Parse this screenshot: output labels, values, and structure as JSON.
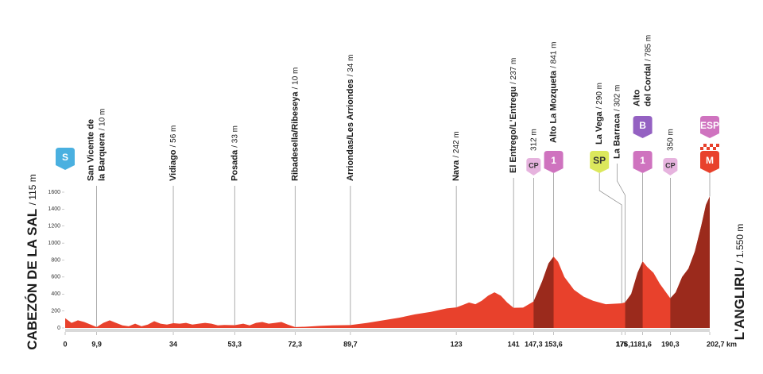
{
  "chart_data": {
    "type": "area",
    "start_name": "CABEZÓN DE LA SAL",
    "start_elevation": "/ 115 m",
    "finish_name": "L'ANGLIRU",
    "finish_elevation": "/ 1.550 m",
    "x": [
      0,
      2,
      4,
      6,
      8,
      9.9,
      12,
      14,
      16,
      18,
      20,
      22,
      24,
      26,
      28,
      30,
      32,
      34,
      36,
      38,
      40,
      42,
      44,
      46,
      48,
      50,
      53.3,
      56,
      58,
      60,
      62,
      64,
      66,
      68,
      70,
      72.3,
      76,
      80,
      84,
      89.7,
      95,
      100,
      105,
      110,
      115,
      120,
      123,
      125,
      127,
      129,
      131,
      133,
      135,
      137,
      139,
      141,
      144,
      147.3,
      150,
      152,
      153.6,
      155,
      157,
      160,
      163,
      166,
      170,
      175,
      176.1,
      178,
      180,
      181.6,
      183,
      185,
      187,
      190.3,
      192,
      194,
      196,
      198,
      200,
      201.5,
      202.7
    ],
    "values": [
      115,
      60,
      90,
      70,
      40,
      10,
      60,
      90,
      60,
      30,
      20,
      50,
      20,
      40,
      80,
      50,
      40,
      56,
      50,
      60,
      40,
      50,
      60,
      50,
      30,
      35,
      33,
      50,
      30,
      60,
      70,
      50,
      60,
      70,
      40,
      10,
      15,
      25,
      30,
      34,
      60,
      90,
      120,
      160,
      190,
      230,
      242,
      270,
      300,
      280,
      320,
      380,
      420,
      380,
      300,
      237,
      240,
      312,
      550,
      760,
      841,
      780,
      600,
      450,
      370,
      320,
      280,
      290,
      302,
      400,
      650,
      785,
      720,
      650,
      520,
      350,
      420,
      600,
      700,
      900,
      1200,
      1450,
      1550
    ],
    "color": "#e8412c",
    "climb_color": "#9b2a1c",
    "climbs": [
      {
        "from": 147.3,
        "to": 153.6
      },
      {
        "from": 176.1,
        "to": 181.6
      },
      {
        "from": 190.3,
        "to": 202.7
      }
    ],
    "xlim": [
      0,
      202.7
    ],
    "ylim": [
      0,
      1600
    ],
    "xticks": [
      0,
      {
        "value": 9.9,
        "label": "9,9"
      },
      34,
      {
        "value": 53.3,
        "label": "53,3"
      },
      {
        "value": 72.3,
        "label": "72,3"
      },
      {
        "value": 89.7,
        "label": "89,7"
      },
      123,
      141,
      {
        "value": 147.3,
        "label": "147,3"
      },
      {
        "value": 153.6,
        "label": "153,6"
      },
      175,
      {
        "value": 176.1,
        "label": "176,1"
      },
      {
        "value": 181.6,
        "label": "181,6"
      },
      {
        "value": 190.3,
        "label": "190,3"
      },
      {
        "value": 202.7,
        "label": "202,7 km"
      }
    ],
    "yticks": [
      0,
      200,
      400,
      600,
      800,
      1000,
      1200,
      1400,
      1600
    ],
    "waypoints": [
      {
        "x": 0,
        "badges": [
          {
            "text": "S",
            "color": "#4ab0e0"
          }
        ]
      },
      {
        "x": 9.9,
        "name": [
          "San Vicente de",
          "la Barquera"
        ],
        "elevation": "/ 10 m"
      },
      {
        "x": 34,
        "name": [
          "Vidiago"
        ],
        "elevation": "/ 56 m"
      },
      {
        "x": 53.3,
        "name": [
          "Posada"
        ],
        "elevation": "/ 33 m"
      },
      {
        "x": 72.3,
        "name": [
          "Ribadesella/Ribeseya"
        ],
        "elevation": "/ 10 m"
      },
      {
        "x": 89.7,
        "name": [
          "Arriondas/Les Arriondes"
        ],
        "elevation": "/ 34 m"
      },
      {
        "x": 123,
        "name": [
          "Nava"
        ],
        "elevation": "/ 242 m"
      },
      {
        "x": 141,
        "name": [
          "El Entrego/L'Entregu"
        ],
        "elevation": "/ 237 m"
      },
      {
        "x": 147.3,
        "elevation": "312 m",
        "badges": [
          {
            "text": "CP",
            "color": "#e6b3de"
          }
        ]
      },
      {
        "x": 153.6,
        "name": [
          "Alto La Mozqueta"
        ],
        "elevation": "/ 841 m",
        "badges": [
          {
            "text": "1",
            "color": "#cf73bf"
          }
        ]
      },
      {
        "x": 175,
        "name": [
          "La Vega"
        ],
        "elevation": "/ 290 m",
        "badges": [
          {
            "text": "SP",
            "color": "#dce85c"
          }
        ]
      },
      {
        "x": 176.1,
        "name": [
          "La Barraca"
        ],
        "elevation": "/ 302 m"
      },
      {
        "x": 181.6,
        "name": [
          "Alto",
          "del Cordal"
        ],
        "elevation": "/ 785 m",
        "badges": [
          {
            "text": "B",
            "color": "#9461c2"
          },
          {
            "text": "1",
            "color": "#cf73bf"
          }
        ]
      },
      {
        "x": 190.3,
        "elevation": "350 m",
        "badges": [
          {
            "text": "CP",
            "color": "#e6b3de"
          }
        ]
      },
      {
        "x": 202.7,
        "badges": [
          {
            "text": "ESP",
            "color": "#cf73bf"
          },
          {
            "text": "M",
            "color": "#e8412c"
          }
        ]
      }
    ]
  }
}
